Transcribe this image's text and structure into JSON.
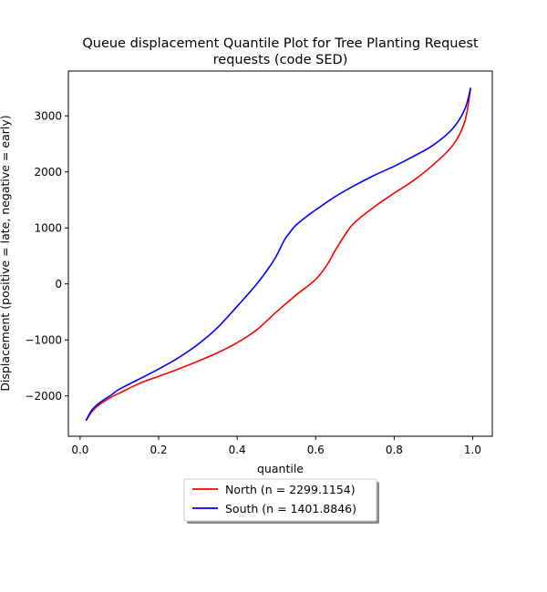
{
  "chart_data": {
    "type": "line",
    "title_lines": [
      "Queue displacement Quantile Plot for Tree Planting Request",
      "requests (code SED)"
    ],
    "xlabel": "quantile",
    "ylabel": "Displacement (positive = late, negative = early)",
    "xlim": [
      -0.03,
      1.05
    ],
    "ylim": [
      -2720,
      3800
    ],
    "x_ticks": [
      0.0,
      0.2,
      0.4,
      0.6,
      0.8,
      1.0
    ],
    "x_tick_labels": [
      "0.0",
      "0.2",
      "0.4",
      "0.6",
      "0.8",
      "1.0"
    ],
    "y_ticks": [
      -2000,
      -1000,
      0,
      1000,
      2000,
      3000
    ],
    "y_tick_labels": [
      "−2000",
      "−1000",
      "0",
      "1000",
      "2000",
      "3000"
    ],
    "grid": false,
    "legend_placement": "below-center",
    "series": [
      {
        "name": "North (n = 2299.1154)",
        "color": "#ff0000",
        "x": [
          0.015,
          0.03,
          0.05,
          0.08,
          0.1,
          0.15,
          0.2,
          0.25,
          0.3,
          0.35,
          0.4,
          0.45,
          0.5,
          0.55,
          0.6,
          0.63,
          0.65,
          0.68,
          0.7,
          0.75,
          0.8,
          0.85,
          0.9,
          0.95,
          0.98,
          0.995
        ],
        "y": [
          -2440,
          -2280,
          -2150,
          -2020,
          -1950,
          -1780,
          -1650,
          -1520,
          -1380,
          -1230,
          -1050,
          -820,
          -500,
          -200,
          80,
          350,
          600,
          930,
          1100,
          1380,
          1620,
          1850,
          2130,
          2480,
          2900,
          3500
        ]
      },
      {
        "name": "South (n = 1401.8846)",
        "color": "#0000ff",
        "x": [
          0.015,
          0.03,
          0.05,
          0.08,
          0.1,
          0.15,
          0.2,
          0.25,
          0.3,
          0.35,
          0.4,
          0.45,
          0.48,
          0.5,
          0.52,
          0.53,
          0.55,
          0.58,
          0.6,
          0.65,
          0.7,
          0.75,
          0.8,
          0.85,
          0.9,
          0.95,
          0.98,
          0.995
        ],
        "y": [
          -2440,
          -2250,
          -2120,
          -1980,
          -1880,
          -1700,
          -1520,
          -1320,
          -1080,
          -780,
          -400,
          0,
          280,
          500,
          780,
          880,
          1050,
          1220,
          1320,
          1560,
          1760,
          1940,
          2100,
          2280,
          2480,
          2780,
          3120,
          3500
        ]
      }
    ]
  }
}
